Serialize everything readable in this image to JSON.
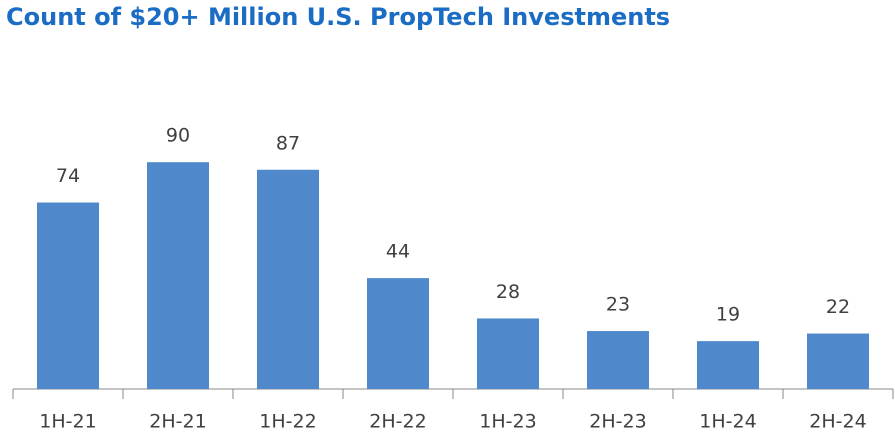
{
  "chart_data": {
    "type": "bar",
    "title": "Count of $20+ Million U.S. PropTech Investments",
    "categories": [
      "1H-21",
      "2H-21",
      "1H-22",
      "2H-22",
      "1H-23",
      "2H-23",
      "1H-24",
      "2H-24"
    ],
    "values": [
      74,
      90,
      87,
      44,
      28,
      23,
      19,
      22
    ],
    "color": "#5089cb",
    "ylim": [
      0,
      100
    ]
  }
}
